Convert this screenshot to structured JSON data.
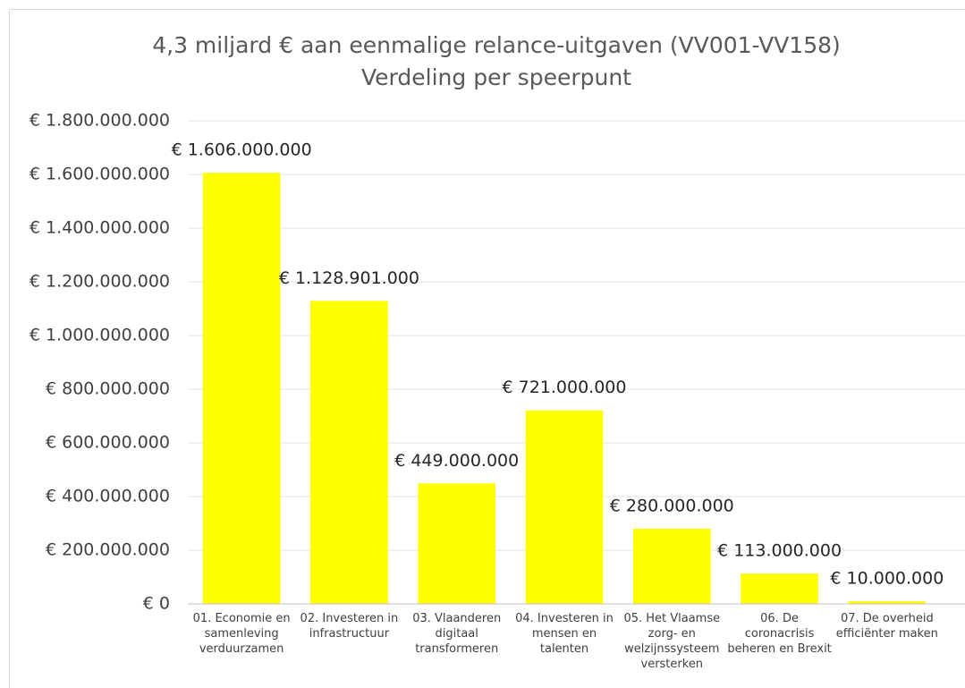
{
  "chart_data": {
    "type": "bar",
    "title": "4,3 miljard € aan eenmalige relance-uitgaven (VV001-VV158)",
    "subtitle": "Verdeling per speerpunt",
    "categories": [
      "01. Economie en samenleving verduurzamen",
      "02. Investeren in infrastructuur",
      "03. Vlaanderen digitaal transformeren",
      "04. Investeren in mensen en talenten",
      "05. Het Vlaamse zorg- en welzijnssysteem versterken",
      "06. De coronacrisis beheren en Brexit",
      "07. De overheid efficiënter maken"
    ],
    "values": [
      1606000000,
      1128901000,
      449000000,
      721000000,
      280000000,
      113000000,
      10000000
    ],
    "value_labels": [
      "€ 1.606.000.000",
      "€ 1.128.901.000",
      "€ 449.000.000",
      "€ 721.000.000",
      "€ 280.000.000",
      "€ 113.000.000",
      "€ 10.000.000"
    ],
    "color": "#ffff00",
    "ylim": [
      0,
      1800000000
    ],
    "yticks": [
      {
        "value": 0,
        "label": "€ 0"
      },
      {
        "value": 200000000,
        "label": "€ 200.000.000"
      },
      {
        "value": 400000000,
        "label": "€ 400.000.000"
      },
      {
        "value": 600000000,
        "label": "€ 600.000.000"
      },
      {
        "value": 800000000,
        "label": "€ 800.000.000"
      },
      {
        "value": 1000000000,
        "label": "€ 1.000.000.000"
      },
      {
        "value": 1200000000,
        "label": "€ 1.200.000.000"
      },
      {
        "value": 1400000000,
        "label": "€ 1.400.000.000"
      },
      {
        "value": 1600000000,
        "label": "€ 1.600.000.000"
      },
      {
        "value": 1800000000,
        "label": "€ 1.800.000.000"
      }
    ],
    "grid": true
  }
}
